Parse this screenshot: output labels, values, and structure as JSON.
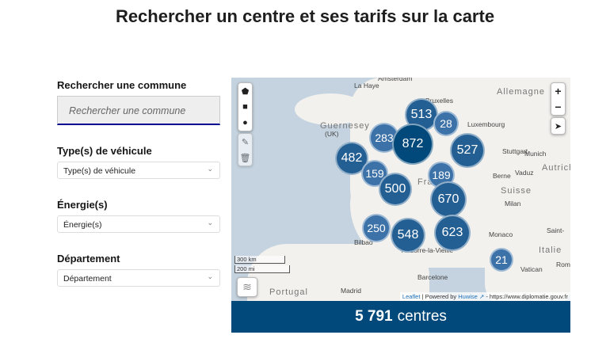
{
  "title": "Rechercher un centre et ses tarifs sur la carte",
  "search": {
    "label": "Rechercher une commune",
    "placeholder": "Rechercher une commune"
  },
  "filters": [
    {
      "label": "Type(s) de véhicule",
      "value": "Type(s) de véhicule"
    },
    {
      "label": "Énergie(s)",
      "value": "Énergie(s)"
    },
    {
      "label": "Département",
      "value": "Département"
    }
  ],
  "map": {
    "clusters": [
      "513",
      "28",
      "283",
      "872",
      "527",
      "482",
      "159",
      "500",
      "189",
      "670",
      "250",
      "548",
      "623",
      "21"
    ],
    "labels": [
      "Amsterdam",
      "La Haye",
      "Allemagne",
      "Bruxelles",
      "Guernesey",
      "(UK)",
      "Luxembourg",
      "Stuttgart",
      "Munich",
      "Autriche",
      "Berne",
      "Vaduz",
      "Suisse",
      "Milan",
      "Monaco",
      "Saint-",
      "Italie",
      "Rome",
      "Vatican",
      "Bilbao",
      "Andorre-la-Vieille",
      "Barcelone",
      "Madrid",
      "Portugal",
      "France"
    ],
    "scale": [
      "300 km",
      "200 mi"
    ],
    "zoom_in": "+",
    "zoom_out": "−",
    "attribution": {
      "leaflet": "Leaflet",
      "powered": "| Powered by",
      "huwise": "Huwise",
      "source": "- https://www.diplomatie.gouv.fr"
    }
  },
  "footer": {
    "count": "5 791",
    "unit": "centres"
  },
  "colors": {
    "dark": "#00497a",
    "mid": "#245f93",
    "light": "#3d72a8"
  }
}
